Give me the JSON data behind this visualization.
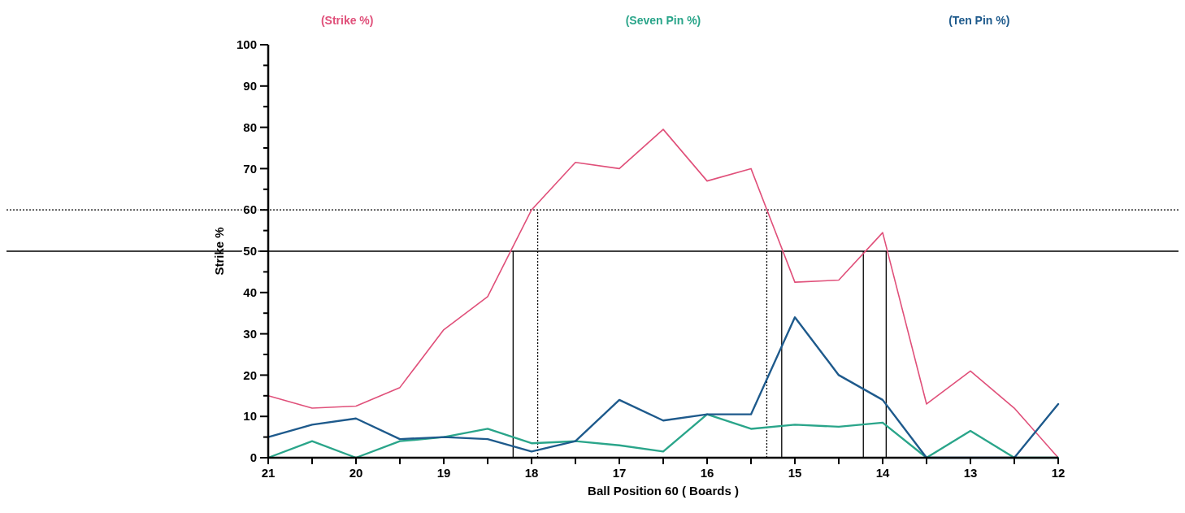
{
  "chart_data": {
    "type": "line",
    "xlabel": "Ball Position 60 ( Boards )",
    "ylabel": "Strike %",
    "x": [
      21,
      20.5,
      20,
      19.5,
      19,
      18.5,
      18,
      17.5,
      17,
      16.5,
      16,
      15.5,
      15,
      14.5,
      14,
      13.5,
      13,
      12.5,
      12
    ],
    "series": [
      {
        "name": "(Strike %)",
        "color": "#e0507a",
        "values": [
          15,
          12,
          12.5,
          17,
          31,
          39,
          60,
          71.5,
          70,
          79.5,
          67,
          70,
          42.5,
          43,
          54.5,
          13,
          21,
          12,
          0
        ]
      },
      {
        "name": "(Seven Pin %)",
        "color": "#2aa58a",
        "values": [
          0,
          4,
          0,
          4,
          5,
          7,
          3.5,
          4,
          3,
          1.5,
          10.5,
          7,
          8,
          7.5,
          8.5,
          0,
          6.5,
          0,
          0
        ]
      },
      {
        "name": "(Ten Pin %)",
        "color": "#1e5a8c",
        "values": [
          5,
          8,
          9.5,
          4.5,
          5,
          4.5,
          1.5,
          4,
          14,
          9,
          10.5,
          10.5,
          34,
          20,
          14,
          0,
          0,
          0,
          13
        ]
      }
    ],
    "xlim": [
      21,
      12
    ],
    "xticks": [
      21,
      {
        "value": 20.5,
        "label": null
      },
      20,
      {
        "value": 19.5,
        "label": null
      },
      19,
      {
        "value": 18.5,
        "label": null
      },
      18,
      {
        "value": 17.5,
        "label": null
      },
      17,
      {
        "value": 16.5,
        "label": null
      },
      16,
      {
        "value": 15.5,
        "label": null
      },
      15,
      {
        "value": 14.5,
        "label": null
      },
      14,
      {
        "value": 13.5,
        "label": null
      },
      13,
      {
        "value": 12.5,
        "label": null
      },
      12
    ],
    "ylim": [
      0,
      100
    ],
    "yticks": [
      0,
      {
        "value": 5,
        "label": null
      },
      10,
      {
        "value": 15,
        "label": null
      },
      20,
      {
        "value": 25,
        "label": null
      },
      30,
      {
        "value": 35,
        "label": null
      },
      40,
      {
        "value": 45,
        "label": null
      },
      50,
      {
        "value": 55,
        "label": null
      },
      60,
      {
        "value": 65,
        "label": null
      },
      70,
      {
        "value": 75,
        "label": null
      },
      80,
      {
        "value": 85,
        "label": null
      },
      90,
      {
        "value": 95,
        "label": null
      },
      100
    ],
    "ref_lines": [
      {
        "axis": "y",
        "value": 60,
        "line_style": "dotted",
        "color": "#000000"
      },
      {
        "axis": "y",
        "value": 50,
        "line_style": "solid",
        "color": "#000000"
      },
      {
        "axis": "x",
        "value": 18.21,
        "line_style": "solid",
        "color": "#000000"
      },
      {
        "axis": "x",
        "value": 17.93,
        "line_style": "dotted",
        "color": "#000000"
      },
      {
        "axis": "x",
        "value": 15.32,
        "line_style": "dotted",
        "color": "#000000"
      },
      {
        "axis": "x",
        "value": 15.15,
        "line_style": "solid",
        "color": "#000000"
      },
      {
        "axis": "x",
        "value": 14.22,
        "line_style": "solid",
        "color": "#000000"
      },
      {
        "axis": "x",
        "value": 13.96,
        "line_style": "solid",
        "color": "#000000"
      }
    ],
    "legend": "top",
    "grid": false,
    "marker": "none",
    "line_style": "solid"
  }
}
